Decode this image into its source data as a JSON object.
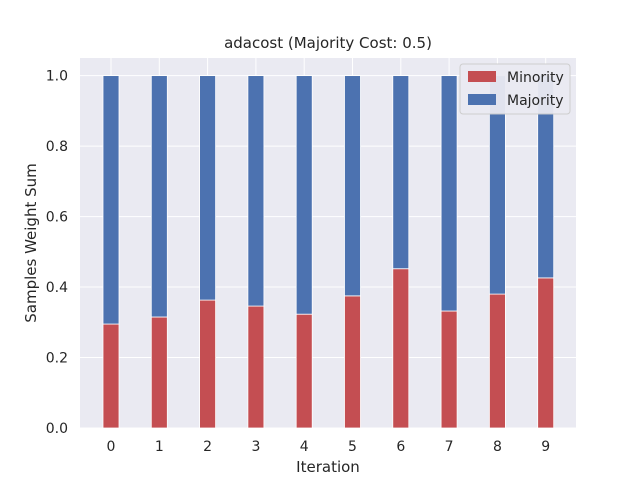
{
  "chart_data": {
    "type": "bar",
    "stacked": true,
    "title": "adacost (Majority Cost: 0.5)",
    "xlabel": "Iteration",
    "ylabel": "Samples Weight Sum",
    "categories": [
      "0",
      "1",
      "2",
      "3",
      "4",
      "5",
      "6",
      "7",
      "8",
      "9"
    ],
    "ylim": [
      0,
      1.05
    ],
    "yticks": [
      "0.0",
      "0.2",
      "0.4",
      "0.6",
      "0.8",
      "1.0"
    ],
    "grid": true,
    "legend_position": "top-right",
    "series": [
      {
        "name": "Minority",
        "color": "#c44e52",
        "values": [
          0.295,
          0.315,
          0.363,
          0.346,
          0.323,
          0.375,
          0.452,
          0.332,
          0.38,
          0.426
        ]
      },
      {
        "name": "Majority",
        "color": "#4c72b0",
        "values": [
          0.705,
          0.685,
          0.637,
          0.654,
          0.677,
          0.625,
          0.548,
          0.668,
          0.62,
          0.574
        ]
      }
    ],
    "background_color": "#eaeaf2",
    "grid_color": "#ffffff"
  }
}
